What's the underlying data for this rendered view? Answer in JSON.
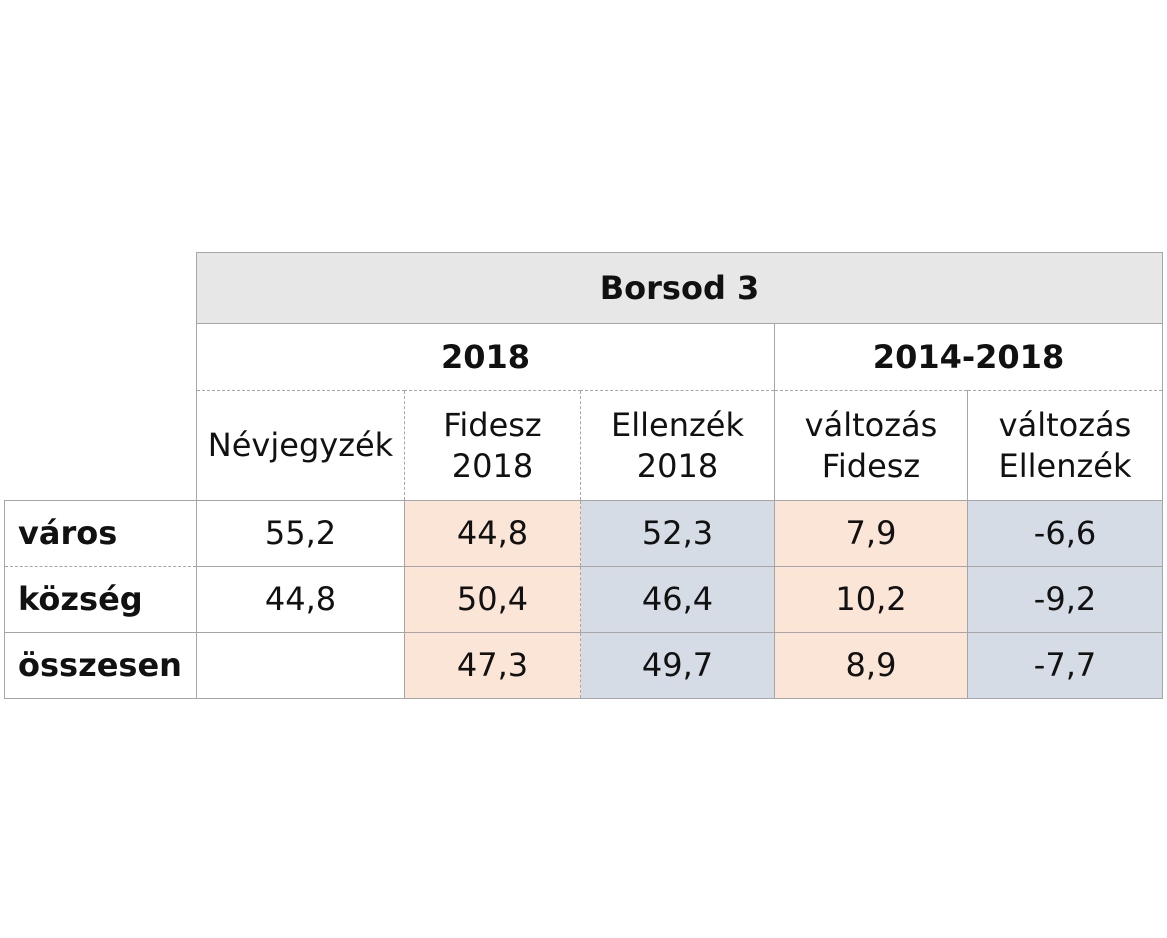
{
  "chart_data": {
    "type": "table",
    "title": "Borsod 3",
    "column_groups": [
      {
        "label": "2018",
        "span": 3
      },
      {
        "label": "2014-2018",
        "span": 2
      }
    ],
    "columns": [
      {
        "line1": "Névjegyzék",
        "line2": ""
      },
      {
        "line1": "Fidesz",
        "line2": "2018"
      },
      {
        "line1": "Ellenzék",
        "line2": "2018"
      },
      {
        "line1": "változás",
        "line2": "Fidesz"
      },
      {
        "line1": "változás",
        "line2": "Ellenzék"
      }
    ],
    "rows": [
      {
        "label": "város",
        "values": [
          "55,2",
          "44,8",
          "52,3",
          "7,9",
          "-6,6"
        ]
      },
      {
        "label": "község",
        "values": [
          "44,8",
          "50,4",
          "46,4",
          "10,2",
          "-9,2"
        ]
      },
      {
        "label": "összesen",
        "values": [
          "",
          "47,3",
          "49,7",
          "8,9",
          "-7,7"
        ]
      }
    ],
    "colors": {
      "fidesz_fill": "#fbe5d6",
      "ellenzek_fill": "#d6dce5",
      "title_fill": "#e7e7e8",
      "border": "#a6a6a6"
    }
  }
}
